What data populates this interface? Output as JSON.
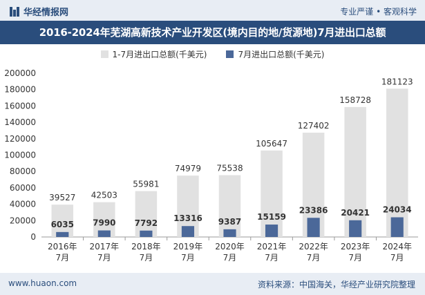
{
  "header": {
    "brand": "华经情报网",
    "tagline": "专业严谨 • 客观科学"
  },
  "colors": {
    "header_bg": "#2a4d7c",
    "series1": "#e1e1e1",
    "series2": "#4b6899"
  },
  "chart_data": {
    "type": "bar",
    "title": "2016-2024年芜湖高新技术产业开发区(境内目的地/货源地)7月进出口总额",
    "categories": [
      "2016年\n7月",
      "2017年\n7月",
      "2018年\n7月",
      "2019年\n7月",
      "2020年\n7月",
      "2021年\n7月",
      "2022年\n7月",
      "2023年\n7月",
      "2024年\n7月"
    ],
    "series": [
      {
        "name": "1-7月进出口总额(千美元)",
        "values": [
          39527,
          42503,
          55981,
          74979,
          75538,
          105647,
          127402,
          158728,
          181123
        ]
      },
      {
        "name": "7月进出口总额(千美元)",
        "values": [
          6035,
          7990,
          7792,
          13316,
          9387,
          15159,
          23386,
          20421,
          24034
        ]
      }
    ],
    "ylim": [
      0,
      200000
    ],
    "yticks": [
      0,
      20000,
      40000,
      60000,
      80000,
      100000,
      120000,
      140000,
      160000,
      180000,
      200000
    ],
    "grid": false,
    "legend": "top-center"
  },
  "footer": {
    "website": "www.huaon.com",
    "source": "资料来源：中国海关，华经产业研究院整理"
  }
}
